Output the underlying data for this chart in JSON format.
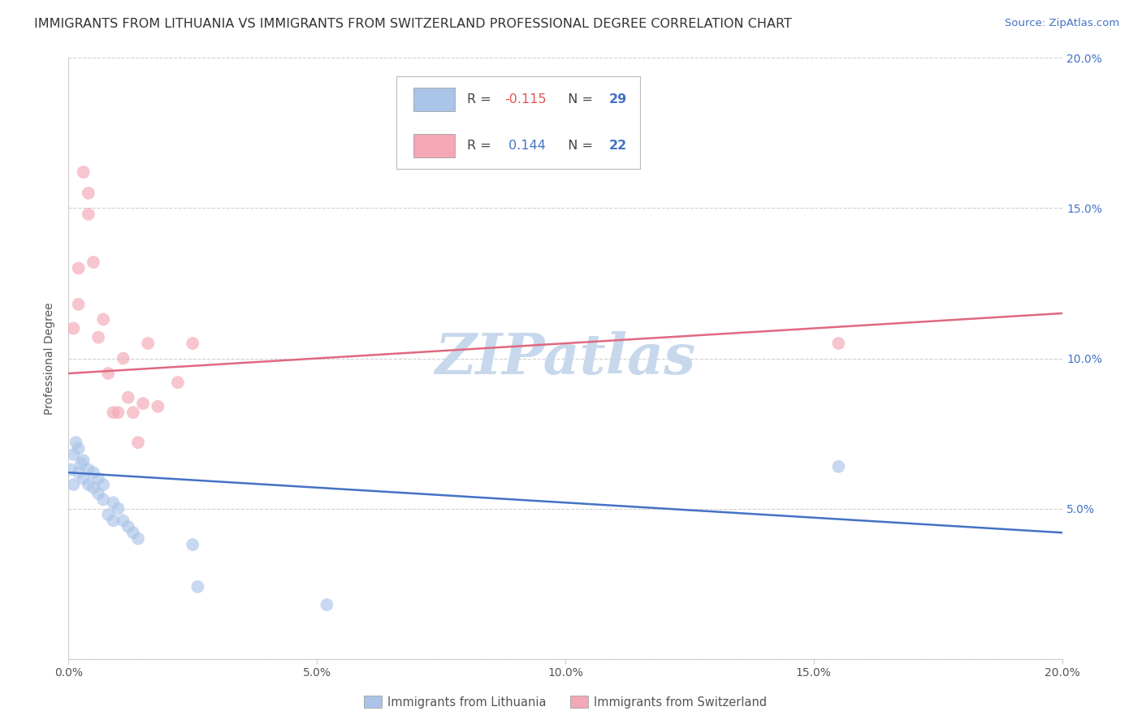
{
  "title": "IMMIGRANTS FROM LITHUANIA VS IMMIGRANTS FROM SWITZERLAND PROFESSIONAL DEGREE CORRELATION CHART",
  "source": "Source: ZipAtlas.com",
  "ylabel": "Professional Degree",
  "watermark": "ZIPatlas",
  "xlim": [
    0.0,
    0.2
  ],
  "ylim": [
    0.0,
    0.2
  ],
  "xtick_vals": [
    0.0,
    0.05,
    0.1,
    0.15,
    0.2
  ],
  "ytick_vals": [
    0.0,
    0.05,
    0.1,
    0.15,
    0.2
  ],
  "lithuania_x": [
    0.0005,
    0.001,
    0.001,
    0.0015,
    0.002,
    0.002,
    0.0025,
    0.003,
    0.003,
    0.004,
    0.004,
    0.005,
    0.005,
    0.006,
    0.006,
    0.007,
    0.007,
    0.008,
    0.009,
    0.009,
    0.01,
    0.011,
    0.012,
    0.013,
    0.014,
    0.025,
    0.026,
    0.052,
    0.155
  ],
  "lithuania_y": [
    0.063,
    0.058,
    0.068,
    0.072,
    0.062,
    0.07,
    0.065,
    0.06,
    0.066,
    0.058,
    0.063,
    0.057,
    0.062,
    0.055,
    0.06,
    0.053,
    0.058,
    0.048,
    0.052,
    0.046,
    0.05,
    0.046,
    0.044,
    0.042,
    0.04,
    0.038,
    0.024,
    0.018,
    0.064
  ],
  "switzerland_x": [
    0.001,
    0.002,
    0.002,
    0.003,
    0.004,
    0.004,
    0.005,
    0.006,
    0.007,
    0.008,
    0.009,
    0.01,
    0.011,
    0.012,
    0.013,
    0.014,
    0.015,
    0.016,
    0.018,
    0.022,
    0.025,
    0.155
  ],
  "switzerland_y": [
    0.11,
    0.13,
    0.118,
    0.162,
    0.155,
    0.148,
    0.132,
    0.107,
    0.113,
    0.095,
    0.082,
    0.082,
    0.1,
    0.087,
    0.082,
    0.072,
    0.085,
    0.105,
    0.084,
    0.092,
    0.105,
    0.105
  ],
  "lithuania_color": "#aac4e8",
  "switzerland_color": "#f4a7b4",
  "lithuania_line_color": "#4472c4",
  "switzerland_line_color": "#e06880",
  "background_color": "#ffffff",
  "title_fontsize": 11.5,
  "source_fontsize": 9.5,
  "watermark_color": "#c8d8ec",
  "watermark_fontsize": 50,
  "scatter_size": 130,
  "scatter_alpha": 0.65,
  "line_width": 1.8,
  "legend_R1": "-0.115",
  "legend_N1": "29",
  "legend_R2": "0.144",
  "legend_N2": "22",
  "r_neg_color": "#e05555",
  "r_pos_color": "#4472c4",
  "n_color": "#4472c4",
  "label_color": "#555555",
  "grid_color": "#d0d0d0",
  "spine_color": "#cccccc",
  "right_tick_color": "#4472c4"
}
